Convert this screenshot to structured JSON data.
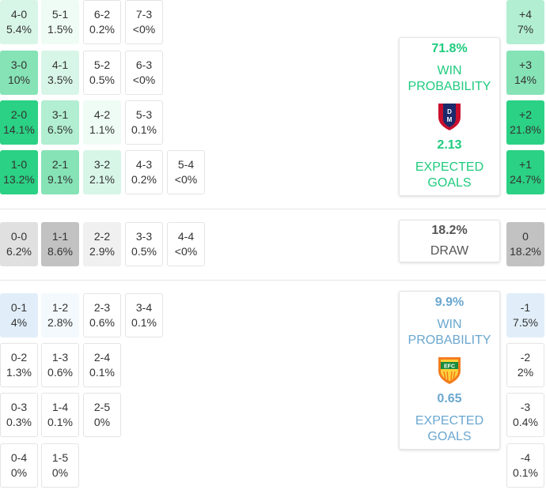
{
  "colors": {
    "home_accent": "#1fcb7e",
    "away_accent": "#6aa7cf",
    "draw_text": "#555555",
    "green_levels": [
      "#ffffff",
      "#eefcf5",
      "#d8f6e7",
      "#b2eed1",
      "#86e3b6",
      "#2bd184"
    ],
    "grey_levels": [
      "#ffffff",
      "#f0f0f0",
      "#e0e0e0",
      "#c2c2c2"
    ],
    "blue_levels": [
      "#ffffff",
      "#f3f9fd",
      "#e1eef9"
    ]
  },
  "home_grid": [
    [
      {
        "score": "4-0",
        "prob": "5.4%",
        "level": 2
      },
      {
        "score": "5-1",
        "prob": "1.5%",
        "level": 1
      },
      {
        "score": "6-2",
        "prob": "0.2%",
        "level": 0
      },
      {
        "score": "7-3",
        "prob": "<0%",
        "level": 0
      }
    ],
    [
      {
        "score": "3-0",
        "prob": "10%",
        "level": 4
      },
      {
        "score": "4-1",
        "prob": "3.5%",
        "level": 2
      },
      {
        "score": "5-2",
        "prob": "0.5%",
        "level": 0
      },
      {
        "score": "6-3",
        "prob": "<0%",
        "level": 0
      }
    ],
    [
      {
        "score": "2-0",
        "prob": "14.1%",
        "level": 5
      },
      {
        "score": "3-1",
        "prob": "6.5%",
        "level": 3
      },
      {
        "score": "4-2",
        "prob": "1.1%",
        "level": 1
      },
      {
        "score": "5-3",
        "prob": "0.1%",
        "level": 0
      }
    ],
    [
      {
        "score": "1-0",
        "prob": "13.2%",
        "level": 5
      },
      {
        "score": "2-1",
        "prob": "9.1%",
        "level": 4
      },
      {
        "score": "3-2",
        "prob": "2.1%",
        "level": 2
      },
      {
        "score": "4-3",
        "prob": "0.2%",
        "level": 0
      },
      {
        "score": "5-4",
        "prob": "<0%",
        "level": 0
      }
    ]
  ],
  "draw_grid": [
    {
      "score": "0-0",
      "prob": "6.2%",
      "level": 2
    },
    {
      "score": "1-1",
      "prob": "8.6%",
      "level": 3
    },
    {
      "score": "2-2",
      "prob": "2.9%",
      "level": 1
    },
    {
      "score": "3-3",
      "prob": "0.5%",
      "level": 0
    },
    {
      "score": "4-4",
      "prob": "<0%",
      "level": 0
    }
  ],
  "away_grid": [
    [
      {
        "score": "0-1",
        "prob": "4%",
        "level": 2
      },
      {
        "score": "1-2",
        "prob": "2.8%",
        "level": 1
      },
      {
        "score": "2-3",
        "prob": "0.6%",
        "level": 0
      },
      {
        "score": "3-4",
        "prob": "0.1%",
        "level": 0
      }
    ],
    [
      {
        "score": "0-2",
        "prob": "1.3%",
        "level": 0
      },
      {
        "score": "1-3",
        "prob": "0.6%",
        "level": 0
      },
      {
        "score": "2-4",
        "prob": "0.1%",
        "level": 0
      }
    ],
    [
      {
        "score": "0-3",
        "prob": "0.3%",
        "level": 0
      },
      {
        "score": "1-4",
        "prob": "0.1%",
        "level": 0
      },
      {
        "score": "2-5",
        "prob": "0%",
        "level": 0
      }
    ],
    [
      {
        "score": "0-4",
        "prob": "0%",
        "level": 0
      },
      {
        "score": "1-5",
        "prob": "0%",
        "level": 0
      }
    ]
  ],
  "home_margins": [
    {
      "margin": "+4",
      "prob": "7%",
      "level": 3
    },
    {
      "margin": "+3",
      "prob": "14%",
      "level": 4
    },
    {
      "margin": "+2",
      "prob": "21.8%",
      "level": 5
    },
    {
      "margin": "+1",
      "prob": "24.7%",
      "level": 5
    }
  ],
  "draw_margin": {
    "margin": "0",
    "prob": "18.2%",
    "level": 3
  },
  "away_margins": [
    {
      "margin": "-1",
      "prob": "7.5%",
      "level": 2
    },
    {
      "margin": "-2",
      "prob": "2%",
      "level": 0
    },
    {
      "margin": "-3",
      "prob": "0.4%",
      "level": 0
    },
    {
      "margin": "-4",
      "prob": "0.1%",
      "level": 0
    }
  ],
  "home_card": {
    "win_pct": "71.8%",
    "win_label": "WIN PROBABILITY",
    "logo_icon": "independiente-medellin-crest-icon",
    "xg": "2.13",
    "xg_label": "EXPECTED GOALS"
  },
  "draw_card": {
    "pct": "18.2%",
    "label": "DRAW"
  },
  "away_card": {
    "win_pct": "9.9%",
    "win_label": "WIN PROBABILITY",
    "logo_icon": "envigado-fc-crest-icon",
    "logo_text": "EFC",
    "xg": "0.65",
    "xg_label": "EXPECTED GOALS"
  }
}
